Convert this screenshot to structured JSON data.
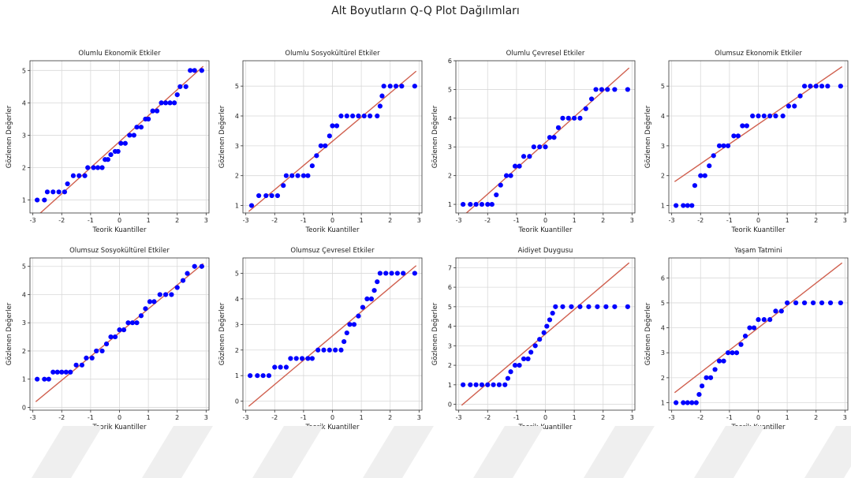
{
  "figure_title": "Alt Boyutların Q-Q Plot Dağılımları",
  "colors": {
    "points": "#0000ff",
    "line": "#d0604f",
    "grid": "#d9d9d9",
    "axes": "#333333",
    "watermark": "#efefef"
  },
  "chart_data": [
    {
      "type": "scatter",
      "title": "Olumlu Ekonomik Etkiler",
      "xlabel": "Teorik Kuantiller",
      "ylabel": "Gözlenen Değerler",
      "xlim": [
        -3.1,
        3.1
      ],
      "ylim": [
        0.6,
        5.3
      ],
      "xticks": [
        -3,
        -2,
        -1,
        0,
        1,
        2,
        3
      ],
      "yticks": [
        1,
        2,
        3,
        4,
        5
      ],
      "grid": true,
      "reference_line": {
        "x": [
          -2.9,
          2.9
        ],
        "y": [
          0.47,
          5.13
        ]
      },
      "points": [
        [
          -2.85,
          1.0
        ],
        [
          -2.6,
          1.0
        ],
        [
          -2.5,
          1.25
        ],
        [
          -2.3,
          1.25
        ],
        [
          -2.1,
          1.25
        ],
        [
          -1.9,
          1.25
        ],
        [
          -1.8,
          1.5
        ],
        [
          -1.6,
          1.75
        ],
        [
          -1.4,
          1.75
        ],
        [
          -1.2,
          1.75
        ],
        [
          -1.1,
          2.0
        ],
        [
          -0.9,
          2.0
        ],
        [
          -0.75,
          2.0
        ],
        [
          -0.6,
          2.0
        ],
        [
          -0.5,
          2.25
        ],
        [
          -0.4,
          2.25
        ],
        [
          -0.3,
          2.4
        ],
        [
          -0.15,
          2.5
        ],
        [
          -0.05,
          2.5
        ],
        [
          0.05,
          2.75
        ],
        [
          0.2,
          2.75
        ],
        [
          0.35,
          3.0
        ],
        [
          0.5,
          3.0
        ],
        [
          0.6,
          3.25
        ],
        [
          0.75,
          3.25
        ],
        [
          0.9,
          3.5
        ],
        [
          1.0,
          3.5
        ],
        [
          1.15,
          3.75
        ],
        [
          1.3,
          3.75
        ],
        [
          1.45,
          4.0
        ],
        [
          1.6,
          4.0
        ],
        [
          1.75,
          4.0
        ],
        [
          1.9,
          4.0
        ],
        [
          2.0,
          4.25
        ],
        [
          2.1,
          4.5
        ],
        [
          2.3,
          4.5
        ],
        [
          2.45,
          5.0
        ],
        [
          2.6,
          5.0
        ],
        [
          2.85,
          5.0
        ]
      ]
    },
    {
      "type": "scatter",
      "title": "Olumlu Sosyokültürel Etkiler",
      "xlabel": "Teorik Kuantiller",
      "ylabel": "Gözlenen Değerler",
      "xlim": [
        -3.1,
        3.1
      ],
      "ylim": [
        0.75,
        5.85
      ],
      "xticks": [
        -3,
        -2,
        -1,
        0,
        1,
        2,
        3
      ],
      "yticks": [
        1,
        2,
        3,
        4,
        5
      ],
      "grid": true,
      "reference_line": {
        "x": [
          -2.9,
          2.9
        ],
        "y": [
          0.8,
          5.5
        ]
      },
      "points": [
        [
          -2.8,
          1.0
        ],
        [
          -2.55,
          1.33
        ],
        [
          -2.3,
          1.33
        ],
        [
          -2.1,
          1.33
        ],
        [
          -1.9,
          1.33
        ],
        [
          -1.7,
          1.67
        ],
        [
          -1.6,
          2.0
        ],
        [
          -1.4,
          2.0
        ],
        [
          -1.2,
          2.0
        ],
        [
          -1.0,
          2.0
        ],
        [
          -0.85,
          2.0
        ],
        [
          -0.7,
          2.33
        ],
        [
          -0.55,
          2.67
        ],
        [
          -0.4,
          3.0
        ],
        [
          -0.25,
          3.0
        ],
        [
          -0.1,
          3.33
        ],
        [
          0.0,
          3.67
        ],
        [
          0.15,
          3.67
        ],
        [
          0.3,
          4.0
        ],
        [
          0.5,
          4.0
        ],
        [
          0.7,
          4.0
        ],
        [
          0.9,
          4.0
        ],
        [
          1.1,
          4.0
        ],
        [
          1.3,
          4.0
        ],
        [
          1.55,
          4.0
        ],
        [
          1.65,
          4.33
        ],
        [
          1.72,
          4.67
        ],
        [
          1.78,
          5.0
        ],
        [
          2.0,
          5.0
        ],
        [
          2.2,
          5.0
        ],
        [
          2.4,
          5.0
        ],
        [
          2.85,
          5.0
        ]
      ]
    },
    {
      "type": "scatter",
      "title": "Olumlu Çevresel Etkiler",
      "xlabel": "Teorik Kuantiller",
      "ylabel": "Gözlenen Değerler",
      "xlim": [
        -3.1,
        3.1
      ],
      "ylim": [
        0.7,
        6.0
      ],
      "xticks": [
        -3,
        -2,
        -1,
        0,
        1,
        2,
        3
      ],
      "yticks": [
        1,
        2,
        3,
        4,
        5,
        6
      ],
      "grid": true,
      "reference_line": {
        "x": [
          -2.9,
          2.9
        ],
        "y": [
          0.55,
          5.75
        ]
      },
      "points": [
        [
          -2.85,
          1.0
        ],
        [
          -2.6,
          1.0
        ],
        [
          -2.4,
          1.0
        ],
        [
          -2.2,
          1.0
        ],
        [
          -2.0,
          1.0
        ],
        [
          -1.85,
          1.0
        ],
        [
          -1.7,
          1.33
        ],
        [
          -1.55,
          1.67
        ],
        [
          -1.35,
          2.0
        ],
        [
          -1.2,
          2.0
        ],
        [
          -1.05,
          2.33
        ],
        [
          -0.9,
          2.33
        ],
        [
          -0.75,
          2.67
        ],
        [
          -0.55,
          2.67
        ],
        [
          -0.4,
          3.0
        ],
        [
          -0.2,
          3.0
        ],
        [
          0.0,
          3.0
        ],
        [
          0.15,
          3.33
        ],
        [
          0.3,
          3.33
        ],
        [
          0.45,
          3.67
        ],
        [
          0.6,
          4.0
        ],
        [
          0.8,
          4.0
        ],
        [
          1.0,
          4.0
        ],
        [
          1.2,
          4.0
        ],
        [
          1.4,
          4.33
        ],
        [
          1.6,
          4.67
        ],
        [
          1.75,
          5.0
        ],
        [
          1.95,
          5.0
        ],
        [
          2.15,
          5.0
        ],
        [
          2.4,
          5.0
        ],
        [
          2.85,
          5.0
        ]
      ]
    },
    {
      "type": "scatter",
      "title": "Olumsuz Ekonomik Etkiler",
      "xlabel": "Teorik Kuantiller",
      "ylabel": "Gözlenen Değerler",
      "xlim": [
        -3.1,
        3.1
      ],
      "ylim": [
        0.75,
        5.85
      ],
      "xticks": [
        -3,
        -2,
        -1,
        0,
        1,
        2,
        3
      ],
      "yticks": [
        1,
        2,
        3,
        4,
        5
      ],
      "grid": true,
      "reference_line": {
        "x": [
          -2.9,
          2.9
        ],
        "y": [
          1.8,
          5.65
        ]
      },
      "points": [
        [
          -2.85,
          1.0
        ],
        [
          -2.6,
          1.0
        ],
        [
          -2.45,
          1.0
        ],
        [
          -2.3,
          1.0
        ],
        [
          -2.2,
          1.67
        ],
        [
          -2.0,
          2.0
        ],
        [
          -1.85,
          2.0
        ],
        [
          -1.7,
          2.33
        ],
        [
          -1.55,
          2.67
        ],
        [
          -1.35,
          3.0
        ],
        [
          -1.2,
          3.0
        ],
        [
          -1.05,
          3.0
        ],
        [
          -0.85,
          3.33
        ],
        [
          -0.7,
          3.33
        ],
        [
          -0.55,
          3.67
        ],
        [
          -0.4,
          3.67
        ],
        [
          -0.2,
          4.0
        ],
        [
          0.0,
          4.0
        ],
        [
          0.2,
          4.0
        ],
        [
          0.4,
          4.0
        ],
        [
          0.6,
          4.0
        ],
        [
          0.85,
          4.0
        ],
        [
          1.05,
          4.33
        ],
        [
          1.25,
          4.33
        ],
        [
          1.45,
          4.67
        ],
        [
          1.6,
          5.0
        ],
        [
          1.8,
          5.0
        ],
        [
          2.0,
          5.0
        ],
        [
          2.2,
          5.0
        ],
        [
          2.4,
          5.0
        ],
        [
          2.85,
          5.0
        ]
      ]
    },
    {
      "type": "scatter",
      "title": "Olumsuz Sosyokültürel Etkiler",
      "xlabel": "Teorik Kuantiller",
      "ylabel": "Gözlenen Değerler",
      "xlim": [
        -3.1,
        3.1
      ],
      "ylim": [
        -0.1,
        5.3
      ],
      "xticks": [
        -3,
        -2,
        -1,
        0,
        1,
        2,
        3
      ],
      "yticks": [
        0,
        1,
        2,
        3,
        4,
        5
      ],
      "grid": true,
      "reference_line": {
        "x": [
          -2.9,
          2.9
        ],
        "y": [
          0.2,
          5.1
        ]
      },
      "points": [
        [
          -2.85,
          1.0
        ],
        [
          -2.6,
          1.0
        ],
        [
          -2.45,
          1.0
        ],
        [
          -2.3,
          1.25
        ],
        [
          -2.15,
          1.25
        ],
        [
          -2.0,
          1.25
        ],
        [
          -1.85,
          1.25
        ],
        [
          -1.7,
          1.25
        ],
        [
          -1.5,
          1.5
        ],
        [
          -1.3,
          1.5
        ],
        [
          -1.15,
          1.75
        ],
        [
          -0.95,
          1.75
        ],
        [
          -0.8,
          2.0
        ],
        [
          -0.6,
          2.0
        ],
        [
          -0.45,
          2.25
        ],
        [
          -0.3,
          2.5
        ],
        [
          -0.15,
          2.5
        ],
        [
          0.0,
          2.75
        ],
        [
          0.15,
          2.75
        ],
        [
          0.3,
          3.0
        ],
        [
          0.45,
          3.0
        ],
        [
          0.6,
          3.0
        ],
        [
          0.75,
          3.25
        ],
        [
          0.9,
          3.5
        ],
        [
          1.05,
          3.75
        ],
        [
          1.2,
          3.75
        ],
        [
          1.4,
          4.0
        ],
        [
          1.6,
          4.0
        ],
        [
          1.8,
          4.0
        ],
        [
          2.0,
          4.25
        ],
        [
          2.2,
          4.5
        ],
        [
          2.35,
          4.75
        ],
        [
          2.6,
          5.0
        ],
        [
          2.85,
          5.0
        ]
      ]
    },
    {
      "type": "scatter",
      "title": "Olumsuz Çevresel Etkiler",
      "xlabel": "Teorik Kuantiller",
      "ylabel": "Gözlenen Değerler",
      "xlim": [
        -3.1,
        3.1
      ],
      "ylim": [
        -0.35,
        5.6
      ],
      "xticks": [
        -3,
        -2,
        -1,
        0,
        1,
        2,
        3
      ],
      "yticks": [
        0,
        1,
        2,
        3,
        4,
        5
      ],
      "grid": true,
      "reference_line": {
        "x": [
          -2.9,
          2.9
        ],
        "y": [
          -0.2,
          5.3
        ]
      },
      "points": [
        [
          -2.85,
          1.0
        ],
        [
          -2.6,
          1.0
        ],
        [
          -2.4,
          1.0
        ],
        [
          -2.2,
          1.0
        ],
        [
          -2.0,
          1.33
        ],
        [
          -1.8,
          1.33
        ],
        [
          -1.6,
          1.33
        ],
        [
          -1.45,
          1.67
        ],
        [
          -1.25,
          1.67
        ],
        [
          -1.05,
          1.67
        ],
        [
          -0.85,
          1.67
        ],
        [
          -0.7,
          1.67
        ],
        [
          -0.5,
          2.0
        ],
        [
          -0.3,
          2.0
        ],
        [
          -0.1,
          2.0
        ],
        [
          0.1,
          2.0
        ],
        [
          0.3,
          2.0
        ],
        [
          0.4,
          2.33
        ],
        [
          0.5,
          2.67
        ],
        [
          0.6,
          3.0
        ],
        [
          0.75,
          3.0
        ],
        [
          0.9,
          3.33
        ],
        [
          1.05,
          3.67
        ],
        [
          1.2,
          4.0
        ],
        [
          1.35,
          4.0
        ],
        [
          1.45,
          4.33
        ],
        [
          1.55,
          4.67
        ],
        [
          1.65,
          5.0
        ],
        [
          1.85,
          5.0
        ],
        [
          2.05,
          5.0
        ],
        [
          2.25,
          5.0
        ],
        [
          2.45,
          5.0
        ],
        [
          2.85,
          5.0
        ]
      ]
    },
    {
      "type": "scatter",
      "title": "Aidiyet Duygusu",
      "xlabel": "Teorik Kuantiller",
      "ylabel": "Gözlenen Değerler",
      "xlim": [
        -3.1,
        3.1
      ],
      "ylim": [
        -0.3,
        7.5
      ],
      "xticks": [
        -3,
        -2,
        -1,
        0,
        1,
        2,
        3
      ],
      "yticks": [
        0,
        1,
        2,
        3,
        4,
        5,
        6,
        7
      ],
      "grid": true,
      "reference_line": {
        "x": [
          -2.9,
          2.9
        ],
        "y": [
          -0.05,
          7.25
        ]
      },
      "points": [
        [
          -2.85,
          1.0
        ],
        [
          -2.6,
          1.0
        ],
        [
          -2.4,
          1.0
        ],
        [
          -2.2,
          1.0
        ],
        [
          -2.0,
          1.0
        ],
        [
          -1.8,
          1.0
        ],
        [
          -1.6,
          1.0
        ],
        [
          -1.4,
          1.0
        ],
        [
          -1.3,
          1.33
        ],
        [
          -1.2,
          1.67
        ],
        [
          -1.05,
          2.0
        ],
        [
          -0.9,
          2.0
        ],
        [
          -0.75,
          2.33
        ],
        [
          -0.6,
          2.33
        ],
        [
          -0.5,
          2.67
        ],
        [
          -0.35,
          3.0
        ],
        [
          -0.2,
          3.33
        ],
        [
          -0.05,
          3.67
        ],
        [
          0.05,
          4.0
        ],
        [
          0.15,
          4.33
        ],
        [
          0.25,
          4.67
        ],
        [
          0.35,
          5.0
        ],
        [
          0.6,
          5.0
        ],
        [
          0.9,
          5.0
        ],
        [
          1.2,
          5.0
        ],
        [
          1.5,
          5.0
        ],
        [
          1.8,
          5.0
        ],
        [
          2.1,
          5.0
        ],
        [
          2.4,
          5.0
        ],
        [
          2.85,
          5.0
        ]
      ]
    },
    {
      "type": "scatter",
      "title": "Yaşam Tatmini",
      "xlabel": "Teorik Kuantiller",
      "ylabel": "Gözlenen Değerler",
      "xlim": [
        -3.1,
        3.1
      ],
      "ylim": [
        0.7,
        6.8
      ],
      "xticks": [
        -3,
        -2,
        -1,
        0,
        1,
        2,
        3
      ],
      "yticks": [
        1,
        2,
        3,
        4,
        5,
        6
      ],
      "grid": true,
      "reference_line": {
        "x": [
          -2.9,
          2.9
        ],
        "y": [
          1.4,
          6.6
        ]
      },
      "points": [
        [
          -2.85,
          1.0
        ],
        [
          -2.6,
          1.0
        ],
        [
          -2.45,
          1.0
        ],
        [
          -2.3,
          1.0
        ],
        [
          -2.15,
          1.0
        ],
        [
          -2.05,
          1.33
        ],
        [
          -1.95,
          1.67
        ],
        [
          -1.8,
          2.0
        ],
        [
          -1.65,
          2.0
        ],
        [
          -1.5,
          2.33
        ],
        [
          -1.35,
          2.67
        ],
        [
          -1.2,
          2.67
        ],
        [
          -1.05,
          3.0
        ],
        [
          -0.9,
          3.0
        ],
        [
          -0.75,
          3.0
        ],
        [
          -0.6,
          3.33
        ],
        [
          -0.45,
          3.67
        ],
        [
          -0.3,
          4.0
        ],
        [
          -0.15,
          4.0
        ],
        [
          0.0,
          4.33
        ],
        [
          0.2,
          4.33
        ],
        [
          0.4,
          4.33
        ],
        [
          0.6,
          4.67
        ],
        [
          0.8,
          4.67
        ],
        [
          1.0,
          5.0
        ],
        [
          1.3,
          5.0
        ],
        [
          1.6,
          5.0
        ],
        [
          1.9,
          5.0
        ],
        [
          2.2,
          5.0
        ],
        [
          2.5,
          5.0
        ],
        [
          2.85,
          5.0
        ]
      ]
    }
  ]
}
